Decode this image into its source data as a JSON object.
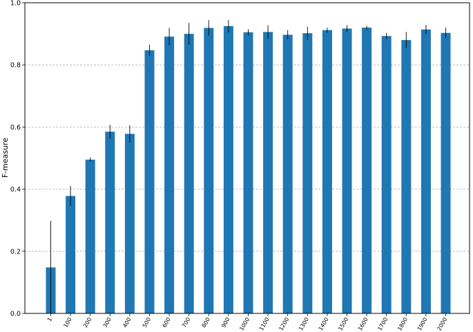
{
  "chart_data": {
    "type": "bar",
    "title": "",
    "xlabel": "",
    "ylabel": "F-measure",
    "categories": [
      "1",
      "100",
      "200",
      "300",
      "400",
      "500",
      "600",
      "700",
      "800",
      "900",
      "1000",
      "1100",
      "1200",
      "1300",
      "1400",
      "1500",
      "1600",
      "1700",
      "1800",
      "1900",
      "2000"
    ],
    "values": [
      0.148,
      0.378,
      0.495,
      0.585,
      0.578,
      0.847,
      0.891,
      0.9,
      0.919,
      0.925,
      0.905,
      0.906,
      0.897,
      0.902,
      0.912,
      0.917,
      0.92,
      0.893,
      0.88,
      0.914,
      0.903
    ],
    "errors": [
      0.15,
      0.032,
      0.007,
      0.022,
      0.028,
      0.018,
      0.028,
      0.035,
      0.025,
      0.02,
      0.01,
      0.022,
      0.015,
      0.021,
      0.008,
      0.011,
      0.006,
      0.01,
      0.026,
      0.015,
      0.017
    ],
    "ylim": [
      0.0,
      1.0
    ],
    "yticks": [
      "0.0",
      "0.2",
      "0.4",
      "0.6",
      "0.8",
      "1.0"
    ],
    "grid": "y-dashed",
    "bar_color": "#1f77b4",
    "error_color": "#000000",
    "grid_color": "#b0b0b0"
  }
}
